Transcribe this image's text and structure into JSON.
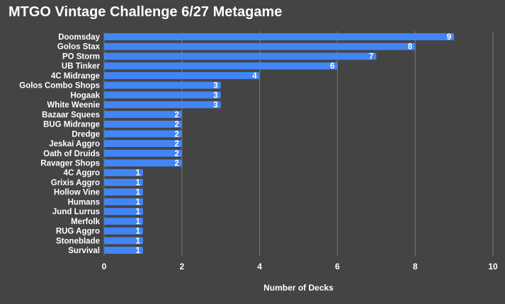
{
  "chart_data": {
    "type": "bar",
    "orientation": "horizontal",
    "title": "MTGO Vintage Challenge 6/27 Metagame",
    "xlabel": "Number of Decks",
    "ylabel": "",
    "xlim": [
      0,
      10
    ],
    "xticks": [
      0,
      2,
      4,
      6,
      8,
      10
    ],
    "grid": true,
    "categories": [
      "Doomsday",
      "Golos Stax",
      "PO Storm",
      "UB Tinker",
      "4C Midrange",
      "Golos Combo Shops",
      "Hogaak",
      "White Weenie",
      "Bazaar Squees",
      "BUG Midrange",
      "Dredge",
      "Jeskai Aggro",
      "Oath of Druids",
      "Ravager Shops",
      "4C Aggro",
      "Grixis Aggro",
      "Hollow Vine",
      "Humans",
      "Jund Lurrus",
      "Merfolk",
      "RUG Aggro",
      "Stoneblade",
      "Survival"
    ],
    "values": [
      9,
      8,
      7,
      6,
      4,
      3,
      3,
      3,
      2,
      2,
      2,
      2,
      2,
      2,
      1,
      1,
      1,
      1,
      1,
      1,
      1,
      1,
      1
    ],
    "colors": {
      "bar": "#4285f4",
      "background": "#444444",
      "grid": "#7a7a7a",
      "text": "#ffffff"
    }
  }
}
